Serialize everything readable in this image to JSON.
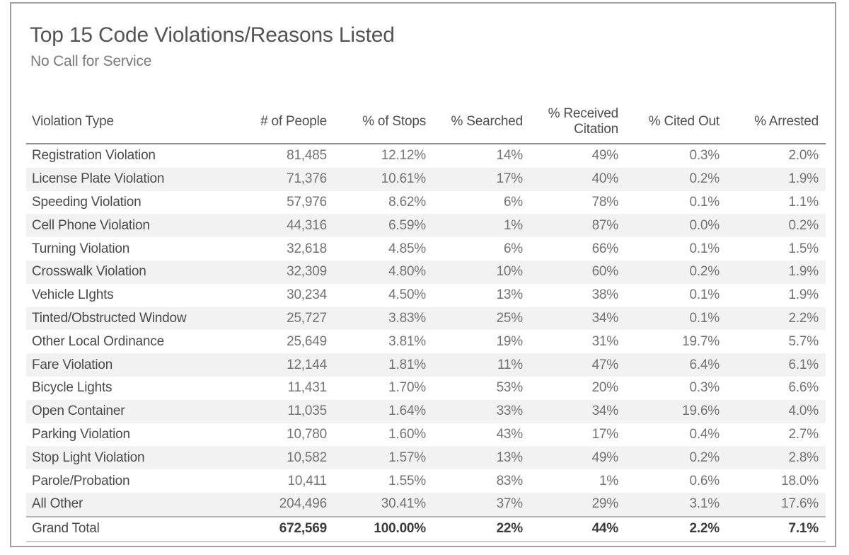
{
  "page": {
    "title": "Top 15 Code Violations/Reasons Listed",
    "subtitle": "No Call for Service"
  },
  "chart_data": {
    "type": "table",
    "title": "Top 15 Code Violations/Reasons Listed",
    "subtitle": "No Call for Service",
    "columns": [
      "Violation Type",
      "# of People",
      "% of Stops",
      "% Searched",
      "% Received Citation",
      "% Cited Out",
      "% Arrested"
    ],
    "rows": [
      [
        "Registration Violation",
        "81,485",
        "12.12%",
        "14%",
        "49%",
        "0.3%",
        "2.0%"
      ],
      [
        "License Plate Violation",
        "71,376",
        "10.61%",
        "17%",
        "40%",
        "0.2%",
        "1.9%"
      ],
      [
        "Speeding Violation",
        "57,976",
        "8.62%",
        "6%",
        "78%",
        "0.1%",
        "1.1%"
      ],
      [
        "Cell Phone Violation",
        "44,316",
        "6.59%",
        "1%",
        "87%",
        "0.0%",
        "0.2%"
      ],
      [
        "Turning Violation",
        "32,618",
        "4.85%",
        "6%",
        "66%",
        "0.1%",
        "1.5%"
      ],
      [
        "Crosswalk Violation",
        "32,309",
        "4.80%",
        "10%",
        "60%",
        "0.2%",
        "1.9%"
      ],
      [
        "Vehicle LIghts",
        "30,234",
        "4.50%",
        "13%",
        "38%",
        "0.1%",
        "1.9%"
      ],
      [
        "Tinted/Obstructed Window",
        "25,727",
        "3.83%",
        "25%",
        "34%",
        "0.1%",
        "2.2%"
      ],
      [
        "Other Local Ordinance",
        "25,649",
        "3.81%",
        "19%",
        "31%",
        "19.7%",
        "5.7%"
      ],
      [
        "Fare Violation",
        "12,144",
        "1.81%",
        "11%",
        "47%",
        "6.4%",
        "6.1%"
      ],
      [
        "Bicycle Lights",
        "11,431",
        "1.70%",
        "53%",
        "20%",
        "0.3%",
        "6.6%"
      ],
      [
        "Open Container",
        "11,035",
        "1.64%",
        "33%",
        "34%",
        "19.6%",
        "4.0%"
      ],
      [
        "Parking Violation",
        "10,780",
        "1.60%",
        "43%",
        "17%",
        "0.4%",
        "2.7%"
      ],
      [
        "Stop Light Violation",
        "10,582",
        "1.57%",
        "13%",
        "49%",
        "0.2%",
        "2.8%"
      ],
      [
        "Parole/Probation",
        "10,411",
        "1.55%",
        "83%",
        "1%",
        "0.6%",
        "18.0%"
      ],
      [
        "All Other",
        "204,496",
        "30.41%",
        "37%",
        "29%",
        "3.1%",
        "17.6%"
      ]
    ],
    "grand_total": [
      "Grand Total",
      "672,569",
      "100.00%",
      "22%",
      "44%",
      "2.2%",
      "7.1%"
    ],
    "layout": {
      "banding": "on",
      "value_alignment": "right",
      "label_alignment": "left"
    }
  },
  "colors": {
    "frame_border": "#a0a0a0",
    "title": "#545454",
    "subtitle": "#7a7a7a",
    "header_text": "#4e4e4e",
    "label_text": "#4a4a4a",
    "value_text": "#737373",
    "row_stripe": "#f2f2f3",
    "header_rule": "#8e8e8e",
    "total_top_rule": "#b5b5b5",
    "total_bottom_rule": "#cccccc",
    "total_text": "#3c3c3c",
    "background": "#ffffff"
  }
}
